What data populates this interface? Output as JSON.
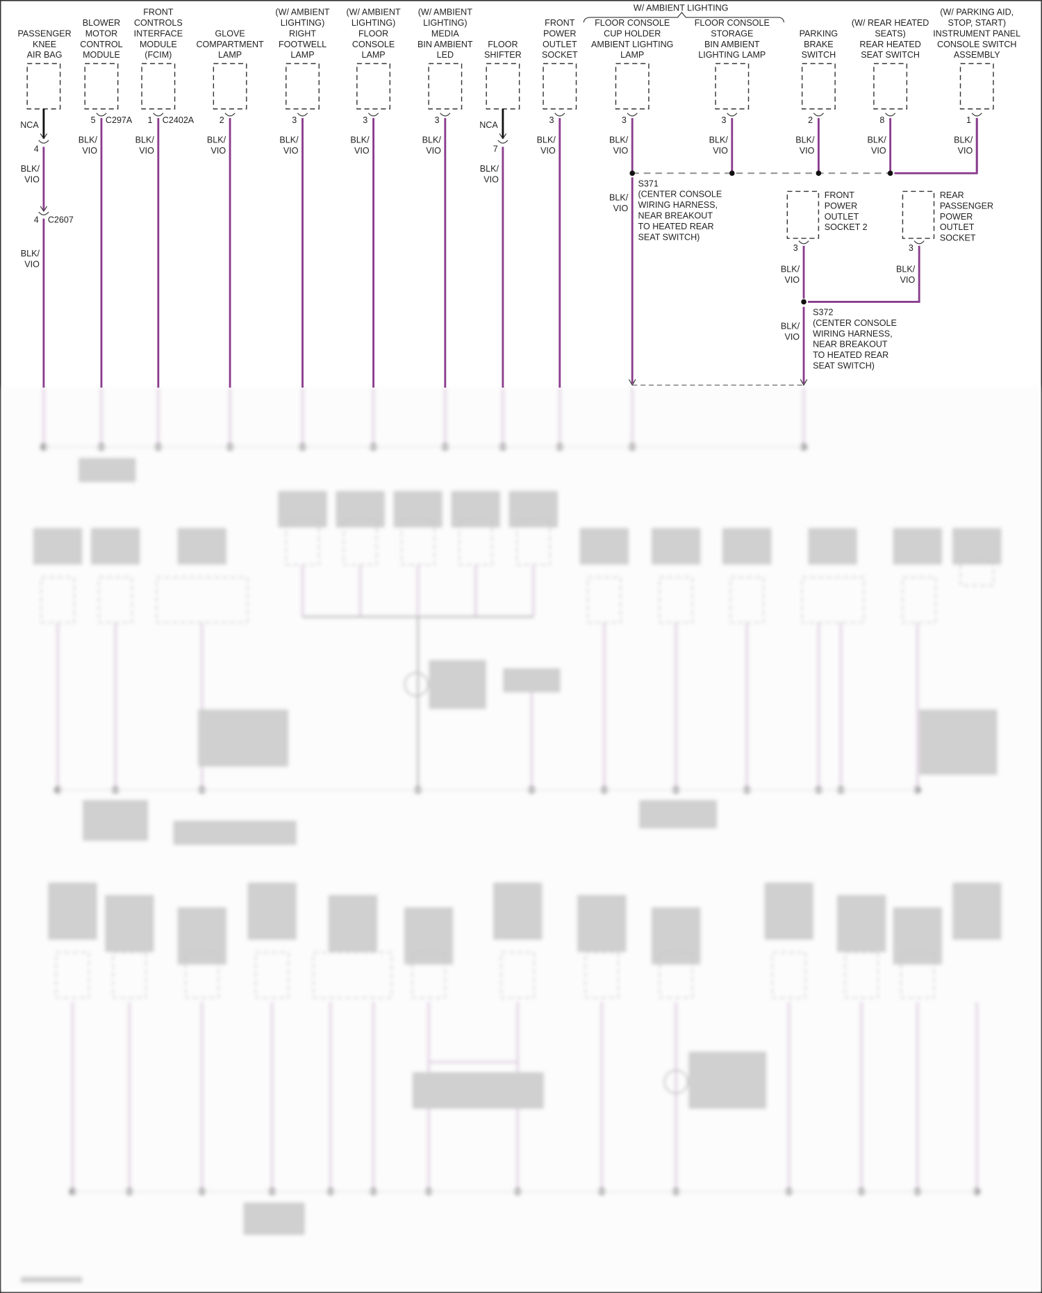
{
  "diagram": {
    "wire_color": "#8a3c8e",
    "nca_wire_color": "#111111",
    "wire_label": [
      "BLK/",
      "VIO"
    ],
    "group_bracket_label": "W/ AMBIENT LIGHTING",
    "components": [
      {
        "id": "passenger-knee-air-bag",
        "label": [
          "PASSENGER",
          "KNEE",
          "AIR BAG"
        ],
        "pin": "",
        "connector": "",
        "nca": "NCA",
        "inline_pin": "4",
        "inline2_pin": "4",
        "inline2_connector": "C2607"
      },
      {
        "id": "blower-motor-control-module",
        "label": [
          "BLOWER",
          "MOTOR",
          "CONTROL",
          "MODULE"
        ],
        "pin": "5",
        "connector": "C297A"
      },
      {
        "id": "front-controls-interface-module",
        "label": [
          "FRONT",
          "CONTROLS",
          "INTERFACE",
          "MODULE",
          "(FCIM)"
        ],
        "pin": "1",
        "connector": "C2402A"
      },
      {
        "id": "glove-compartment-lamp",
        "label": [
          "GLOVE",
          "COMPARTMENT",
          "LAMP"
        ],
        "pin": "2",
        "connector": ""
      },
      {
        "id": "right-footwell-lamp",
        "label": [
          "(W/ AMBIENT",
          "LIGHTING)",
          "RIGHT",
          "FOOTWELL",
          "LAMP"
        ],
        "pin": "3",
        "connector": ""
      },
      {
        "id": "floor-console-lamp",
        "label": [
          "(W/ AMBIENT",
          "LIGHTING)",
          "FLOOR",
          "CONSOLE",
          "LAMP"
        ],
        "pin": "3",
        "connector": ""
      },
      {
        "id": "media-bin-ambient-led",
        "label": [
          "(W/ AMBIENT",
          "LIGHTING)",
          "MEDIA",
          "BIN AMBIENT",
          "LED"
        ],
        "pin": "3",
        "connector": ""
      },
      {
        "id": "floor-shifter",
        "label": [
          "FLOOR",
          "SHIFTER"
        ],
        "pin": "",
        "connector": "",
        "nca": "NCA",
        "inline_pin": "7"
      },
      {
        "id": "front-power-outlet-socket",
        "label": [
          "FRONT",
          "POWER",
          "OUTLET",
          "SOCKET"
        ],
        "pin": "3",
        "connector": ""
      },
      {
        "id": "floor-console-cup-holder-lamp",
        "label": [
          "FLOOR CONSOLE",
          "CUP HOLDER",
          "AMBIENT LIGHTING",
          "LAMP"
        ],
        "pin": "3",
        "connector": ""
      },
      {
        "id": "floor-console-storage-bin-lamp",
        "label": [
          "FLOOR CONSOLE",
          "STORAGE",
          "BIN AMBIENT",
          "LIGHTING LAMP"
        ],
        "pin": "3",
        "connector": ""
      },
      {
        "id": "parking-brake-switch",
        "label": [
          "PARKING",
          "BRAKE",
          "SWITCH"
        ],
        "pin": "2",
        "connector": ""
      },
      {
        "id": "rear-heated-seat-switch",
        "label": [
          "(W/ REAR HEATED",
          "SEATS)",
          "REAR HEATED",
          "SEAT SWITCH"
        ],
        "pin": "8",
        "connector": ""
      },
      {
        "id": "instrument-panel-console-switch-assembly",
        "label": [
          "(W/ PARKING AID,",
          "STOP, START)",
          "INSTRUMENT PANEL",
          "CONSOLE SWITCH",
          "ASSEMBLY"
        ],
        "pin": "1",
        "connector": ""
      }
    ],
    "sub_components": [
      {
        "id": "front-power-outlet-socket-2",
        "label": [
          "FRONT",
          "POWER",
          "OUTLET",
          "SOCKET 2"
        ],
        "pin": "3"
      },
      {
        "id": "rear-passenger-power-outlet-socket",
        "label": [
          "REAR",
          "PASSENGER",
          "POWER",
          "OUTLET",
          "SOCKET"
        ],
        "pin": "3"
      }
    ],
    "splices": [
      {
        "id": "s371",
        "label": [
          "S371",
          "(CENTER CONSOLE",
          "WIRING HARNESS,",
          "NEAR BREAKOUT",
          "TO HEATED REAR",
          "SEAT SWITCH)"
        ]
      },
      {
        "id": "s372",
        "label": [
          "S372",
          "(CENTER CONSOLE",
          "WIRING HARNESS,",
          "NEAR BREAKOUT",
          "TO HEATED REAR",
          "SEAT SWITCH)"
        ]
      }
    ]
  }
}
